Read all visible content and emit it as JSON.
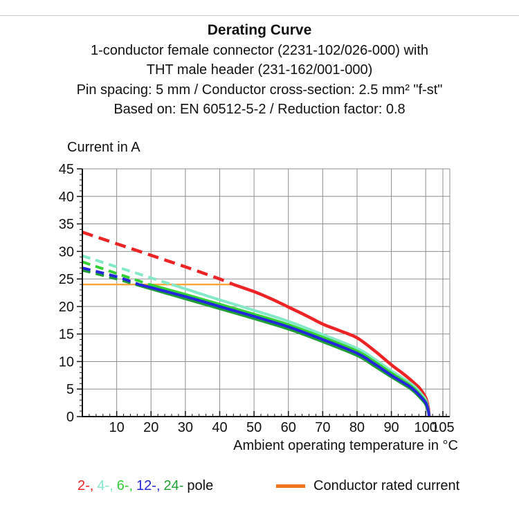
{
  "header": {
    "title": "Derating Curve",
    "lines": [
      "1-conductor female connector (2231-102/026-000) with",
      "THT male header (231-162/001-000)",
      "Pin spacing: 5 mm / Conductor cross-section: 2.5 mm² \"f-st\"",
      "Based on: EN 60512-5-2 / Reduction factor: 0.8"
    ]
  },
  "axes": {
    "y_title": "Current in A",
    "x_title": "Ambient operating temperature in °C"
  },
  "legend": {
    "pole_entries": [
      {
        "label": "2-,",
        "color": "#ee2326"
      },
      {
        "label": "4-,",
        "color": "#84e9c6"
      },
      {
        "label": "6-,",
        "color": "#33d133"
      },
      {
        "label": "12-,",
        "color": "#2424dd"
      },
      {
        "label": "24-",
        "color": "#1f9f34"
      }
    ],
    "pole_suffix": "pole",
    "rated_label": "Conductor rated current",
    "rated_swatch_color": "#f2741c"
  },
  "chart_data": {
    "type": "line",
    "xlabel": "Ambient operating temperature in °C",
    "ylabel": "Current in A",
    "xlim": [
      0,
      107
    ],
    "ylim": [
      0,
      45
    ],
    "x_major_ticks": [
      10,
      20,
      30,
      40,
      50,
      60,
      70,
      80,
      90,
      100,
      105
    ],
    "x_minor_step": 2,
    "y_major_ticks": [
      0,
      5,
      10,
      15,
      20,
      25,
      30,
      35,
      40,
      45
    ],
    "y_minor_step": 1,
    "grid_color": "#8f8f8f",
    "axis_color": "#111111",
    "rated_current_line": {
      "name": "conductor-rated-current",
      "color": "#f9a73b",
      "width": 2.5,
      "points": [
        [
          0,
          24
        ],
        [
          44,
          24
        ]
      ]
    },
    "series": [
      {
        "name": "2-pole",
        "color": "#ee2326",
        "width": 4.5,
        "dash": "16 9",
        "dashed": [
          [
            0,
            33.5
          ],
          [
            10,
            31.4
          ],
          [
            20,
            29.3
          ],
          [
            30,
            27.2
          ],
          [
            40,
            25.0
          ],
          [
            44,
            24.0
          ]
        ],
        "solid": [
          [
            44,
            24.0
          ],
          [
            50,
            22.7
          ],
          [
            55,
            21.4
          ],
          [
            60,
            19.9
          ],
          [
            65,
            18.4
          ],
          [
            70,
            16.8
          ],
          [
            75,
            15.6
          ],
          [
            80,
            14.3
          ],
          [
            85,
            12.0
          ],
          [
            90,
            9.4
          ],
          [
            93,
            8.0
          ],
          [
            95,
            7.0
          ],
          [
            97,
            5.9
          ],
          [
            98,
            5.3
          ],
          [
            99,
            4.5
          ],
          [
            100,
            3.4
          ],
          [
            100.5,
            2.4
          ],
          [
            100.8,
            1.4
          ],
          [
            101,
            0
          ]
        ]
      },
      {
        "name": "4-pole",
        "color": "#84e9c6",
        "width": 4,
        "dash": "12 8",
        "dashed": [
          [
            0,
            29.2
          ],
          [
            10,
            27.2
          ],
          [
            20,
            25.2
          ],
          [
            26,
            24.0
          ]
        ],
        "solid": [
          [
            26,
            24.0
          ],
          [
            30,
            23.2
          ],
          [
            40,
            21.2
          ],
          [
            50,
            19.3
          ],
          [
            60,
            17.3
          ],
          [
            70,
            14.9
          ],
          [
            80,
            12.4
          ],
          [
            85,
            10.5
          ],
          [
            90,
            8.3
          ],
          [
            95,
            6.3
          ],
          [
            97,
            5.3
          ],
          [
            99,
            3.9
          ],
          [
            100,
            3.0
          ],
          [
            100.5,
            2.0
          ],
          [
            100.8,
            1.1
          ],
          [
            101,
            0
          ]
        ]
      },
      {
        "name": "6-pole",
        "color": "#33d133",
        "width": 4,
        "dash": "12 8",
        "dashed": [
          [
            0,
            28.1
          ],
          [
            10,
            26.0
          ],
          [
            19.5,
            24.0
          ]
        ],
        "solid": [
          [
            19.5,
            24.0
          ],
          [
            30,
            22.2
          ],
          [
            40,
            20.4
          ],
          [
            50,
            18.6
          ],
          [
            60,
            16.7
          ],
          [
            70,
            14.4
          ],
          [
            80,
            11.9
          ],
          [
            85,
            10.0
          ],
          [
            90,
            7.9
          ],
          [
            95,
            5.9
          ],
          [
            97,
            4.9
          ],
          [
            99,
            3.5
          ],
          [
            100,
            2.7
          ],
          [
            100.5,
            1.8
          ],
          [
            100.8,
            1.0
          ],
          [
            101,
            0
          ]
        ]
      },
      {
        "name": "24-pole",
        "color": "#1f9f34",
        "width": 4,
        "dash": "12 8",
        "dashed": [
          [
            0,
            26.6
          ],
          [
            10,
            25.0
          ],
          [
            15.5,
            24.0
          ]
        ],
        "solid": [
          [
            15.5,
            24.0
          ],
          [
            30,
            21.4
          ],
          [
            40,
            19.6
          ],
          [
            50,
            17.8
          ],
          [
            60,
            15.9
          ],
          [
            70,
            13.6
          ],
          [
            80,
            11.1
          ],
          [
            85,
            9.2
          ],
          [
            90,
            7.2
          ],
          [
            95,
            5.3
          ],
          [
            97,
            4.3
          ],
          [
            99,
            3.0
          ],
          [
            100,
            2.2
          ],
          [
            100.5,
            1.4
          ],
          [
            100.8,
            0.7
          ],
          [
            101,
            0
          ]
        ]
      },
      {
        "name": "12-pole",
        "color": "#2424dd",
        "width": 4,
        "dash": "12 8",
        "dashed": [
          [
            0,
            27.0
          ],
          [
            10,
            25.4
          ],
          [
            16.5,
            24.0
          ]
        ],
        "solid": [
          [
            16.5,
            24.0
          ],
          [
            30,
            21.8
          ],
          [
            40,
            20.0
          ],
          [
            50,
            18.2
          ],
          [
            60,
            16.3
          ],
          [
            70,
            14.0
          ],
          [
            80,
            11.5
          ],
          [
            85,
            9.6
          ],
          [
            90,
            7.5
          ],
          [
            95,
            5.6
          ],
          [
            97,
            4.6
          ],
          [
            99,
            3.3
          ],
          [
            100,
            2.5
          ],
          [
            100.5,
            1.7
          ],
          [
            100.8,
            0.9
          ],
          [
            101,
            0
          ]
        ]
      }
    ]
  }
}
